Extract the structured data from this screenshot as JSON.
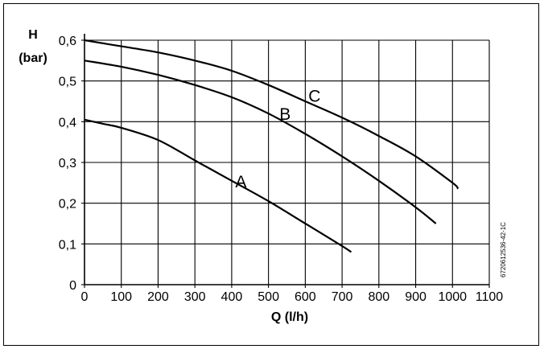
{
  "chart_data": {
    "type": "line",
    "xlabel": "Q (l/h)",
    "ylabel_line1": "H",
    "ylabel_line2": "(bar)",
    "xlim": [
      0,
      1100
    ],
    "ylim": [
      0,
      0.6
    ],
    "xticks": [
      0,
      100,
      200,
      300,
      400,
      500,
      600,
      700,
      800,
      900,
      1000,
      1100
    ],
    "xtick_labels": [
      "0",
      "100",
      "200",
      "300",
      "400",
      "500",
      "600",
      "700",
      "800",
      "900",
      "1000",
      "1100"
    ],
    "yticks": [
      0,
      0.1,
      0.2,
      0.3,
      0.4,
      0.5,
      0.6
    ],
    "ytick_labels": [
      "0",
      "0,1",
      "0,2",
      "0,3",
      "0,4",
      "0,5",
      "0,6"
    ],
    "grid": true,
    "code": "6720612536-42-1C",
    "series": [
      {
        "name": "A",
        "x": [
          0,
          50,
          100,
          200,
          300,
          400,
          500,
          600,
          700,
          725
        ],
        "y": [
          0.405,
          0.395,
          0.385,
          0.355,
          0.305,
          0.255,
          0.205,
          0.15,
          0.095,
          0.08
        ]
      },
      {
        "name": "B",
        "x": [
          0,
          100,
          200,
          300,
          400,
          500,
          600,
          700,
          800,
          900,
          955
        ],
        "y": [
          0.55,
          0.535,
          0.515,
          0.49,
          0.46,
          0.42,
          0.37,
          0.315,
          0.255,
          0.19,
          0.15
        ]
      },
      {
        "name": "C",
        "x": [
          0,
          100,
          200,
          300,
          400,
          500,
          600,
          700,
          800,
          900,
          1000,
          1015
        ],
        "y": [
          0.6,
          0.585,
          0.57,
          0.55,
          0.525,
          0.49,
          0.45,
          0.41,
          0.365,
          0.315,
          0.25,
          0.235
        ]
      }
    ],
    "curve_labels": [
      {
        "text": "A",
        "x": 425,
        "y": 0.255
      },
      {
        "text": "B",
        "x": 545,
        "y": 0.42
      },
      {
        "text": "C",
        "x": 625,
        "y": 0.465
      }
    ]
  }
}
